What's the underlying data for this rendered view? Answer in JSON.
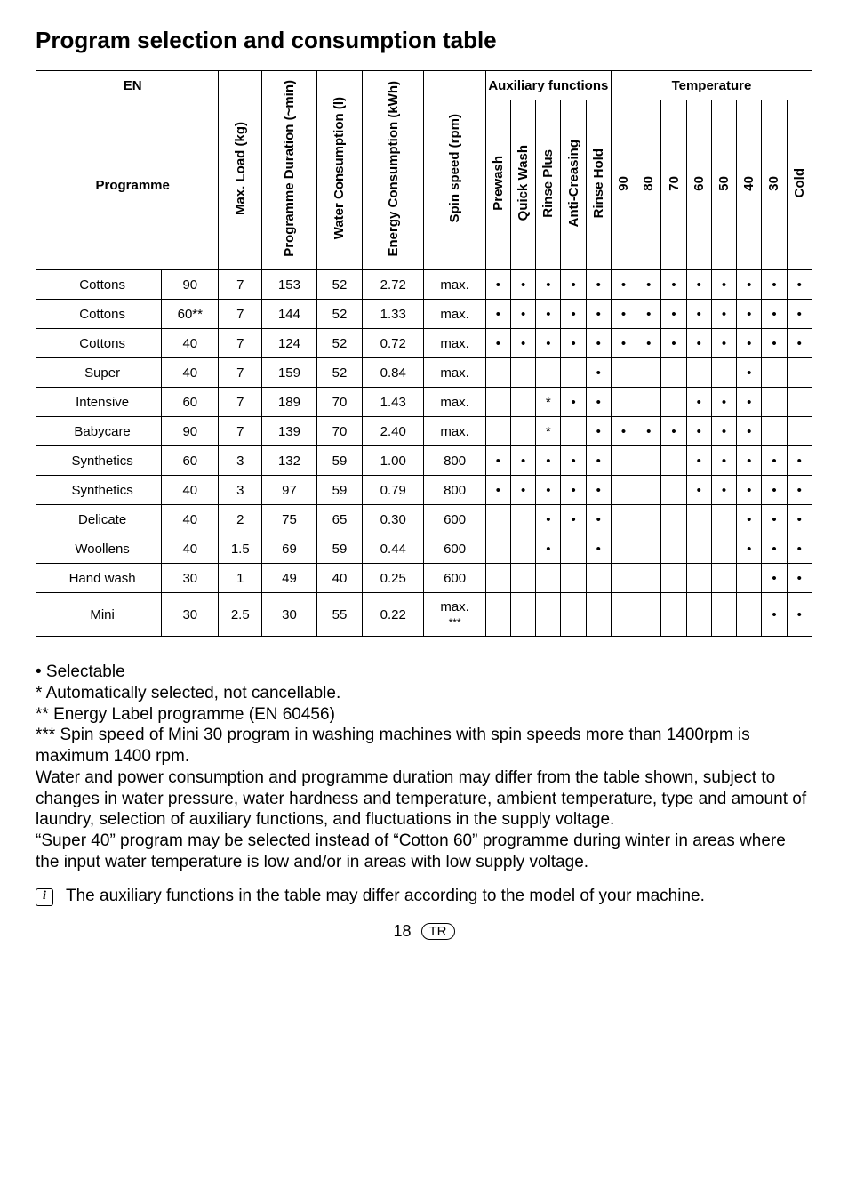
{
  "title": "Program selection and consumption table",
  "headers": {
    "en": "EN",
    "programme": "Programme",
    "max_load": "Max. Load (kg)",
    "duration": "Programme Duration (~min)",
    "water": "Water Consumption (l)",
    "energy": "Energy Consumption (kWh)",
    "spin": "Spin speed (rpm)",
    "aux_group": "Auxiliary functions",
    "temp_group": "Temperature",
    "aux": [
      "Prewash",
      "Quick Wash",
      "Rinse Plus",
      "Anti-Creasing",
      "Rinse Hold"
    ],
    "temps": [
      "90",
      "80",
      "70",
      "60",
      "50",
      "40",
      "30",
      "Cold"
    ]
  },
  "rows": [
    {
      "name": "Cottons",
      "t": "90",
      "load": "7",
      "dur": "153",
      "water": "52",
      "energy": "2.72",
      "spin": "max.",
      "aux": [
        "•",
        "•",
        "•",
        "•",
        "•"
      ],
      "temp": [
        "•",
        "•",
        "•",
        "•",
        "•",
        "•",
        "•",
        "•"
      ]
    },
    {
      "name": "Cottons",
      "t": "60**",
      "load": "7",
      "dur": "144",
      "water": "52",
      "energy": "1.33",
      "spin": "max.",
      "aux": [
        "•",
        "•",
        "•",
        "•",
        "•"
      ],
      "temp": [
        "•",
        "•",
        "•",
        "•",
        "•",
        "•",
        "•",
        "•"
      ]
    },
    {
      "name": "Cottons",
      "t": "40",
      "load": "7",
      "dur": "124",
      "water": "52",
      "energy": "0.72",
      "spin": "max.",
      "aux": [
        "•",
        "•",
        "•",
        "•",
        "•"
      ],
      "temp": [
        "•",
        "•",
        "•",
        "•",
        "•",
        "•",
        "•",
        "•"
      ]
    },
    {
      "name": "Super",
      "t": "40",
      "load": "7",
      "dur": "159",
      "water": "52",
      "energy": "0.84",
      "spin": "max.",
      "aux": [
        "",
        "",
        "",
        "",
        "•"
      ],
      "temp": [
        "",
        "",
        "",
        "",
        "",
        "•",
        "",
        ""
      ]
    },
    {
      "name": "Intensive",
      "t": "60",
      "load": "7",
      "dur": "189",
      "water": "70",
      "energy": "1.43",
      "spin": "max.",
      "aux": [
        "",
        "",
        "*",
        "•",
        "•"
      ],
      "temp": [
        "",
        "",
        "",
        "•",
        "•",
        "•",
        "",
        ""
      ]
    },
    {
      "name": "Babycare",
      "t": "90",
      "load": "7",
      "dur": "139",
      "water": "70",
      "energy": "2.40",
      "spin": "max.",
      "aux": [
        "",
        "",
        "*",
        "",
        "•"
      ],
      "temp": [
        "•",
        "•",
        "•",
        "•",
        "•",
        "•",
        "",
        ""
      ]
    },
    {
      "name": "Synthetics",
      "t": "60",
      "load": "3",
      "dur": "132",
      "water": "59",
      "energy": "1.00",
      "spin": "800",
      "aux": [
        "•",
        "•",
        "•",
        "•",
        "•"
      ],
      "temp": [
        "",
        "",
        "",
        "•",
        "•",
        "•",
        "•",
        "•"
      ]
    },
    {
      "name": "Synthetics",
      "t": "40",
      "load": "3",
      "dur": "97",
      "water": "59",
      "energy": "0.79",
      "spin": "800",
      "aux": [
        "•",
        "•",
        "•",
        "•",
        "•"
      ],
      "temp": [
        "",
        "",
        "",
        "•",
        "•",
        "•",
        "•",
        "•"
      ]
    },
    {
      "name": "Delicate",
      "t": "40",
      "load": "2",
      "dur": "75",
      "water": "65",
      "energy": "0.30",
      "spin": "600",
      "aux": [
        "",
        "",
        "•",
        "•",
        "•"
      ],
      "temp": [
        "",
        "",
        "",
        "",
        "",
        "•",
        "•",
        "•"
      ]
    },
    {
      "name": "Woollens",
      "t": "40",
      "load": "1.5",
      "dur": "69",
      "water": "59",
      "energy": "0.44",
      "spin": "600",
      "aux": [
        "",
        "",
        "•",
        "",
        "•"
      ],
      "temp": [
        "",
        "",
        "",
        "",
        "",
        "•",
        "•",
        "•"
      ]
    },
    {
      "name": "Hand wash",
      "t": "30",
      "load": "1",
      "dur": "49",
      "water": "40",
      "energy": "0.25",
      "spin": "600",
      "aux": [
        "",
        "",
        "",
        "",
        ""
      ],
      "temp": [
        "",
        "",
        "",
        "",
        "",
        "",
        "•",
        "•"
      ]
    },
    {
      "name": "Mini",
      "t": "30",
      "load": "2.5",
      "dur": "30",
      "water": "55",
      "energy": "0.22",
      "spin": "max. ***",
      "aux": [
        "",
        "",
        "",
        "",
        ""
      ],
      "temp": [
        "",
        "",
        "",
        "",
        "",
        "",
        "•",
        "•"
      ]
    }
  ],
  "notes": {
    "l1": "• Selectable",
    "l2": "* Automatically selected, not cancellable.",
    "l3": "** Energy Label programme (EN 60456)",
    "l4": "*** Spin speed of Mini 30 program in washing machines with spin speeds more than 1400rpm is maximum 1400 rpm.",
    "l5": "Water and power consumption and programme duration may differ from the table shown, subject to changes in water pressure, water hardness and temperature, ambient temperature, type and amount of laundry, selection of auxiliary functions, and fluctuations in the supply voltage.",
    "l6": "“Super 40” program may be selected instead of “Cotton 60” programme during winter in areas where the input water temperature is low and/or in areas with low supply voltage."
  },
  "info": "The auxiliary functions in the table may differ according to the model of your machine.",
  "footer": {
    "page": "18",
    "badge": "TR"
  }
}
